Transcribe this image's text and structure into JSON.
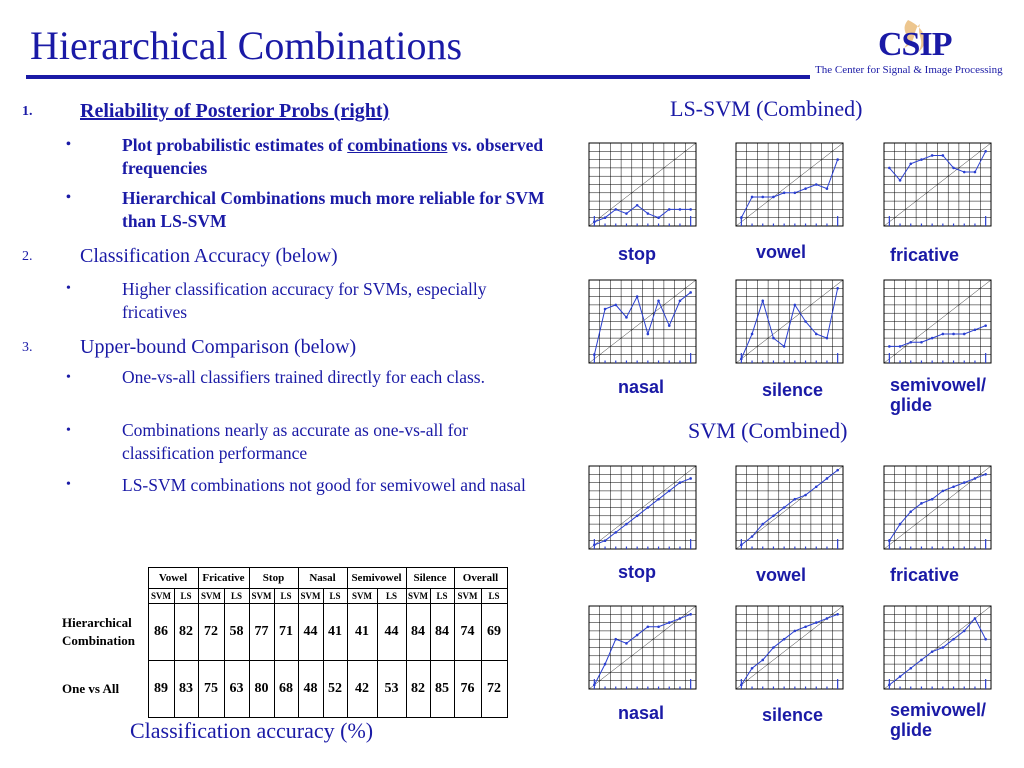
{
  "header": {
    "title": "Hierarchical Combinations",
    "logo_text": "CSIP",
    "tagline": "The Center for Signal & Image Processing"
  },
  "outline": [
    {
      "num": "1.",
      "text": "Reliability of Posterior Probs (right)",
      "bullets": [
        {
          "pre": "Plot probabilistic estimates of ",
          "emph": "combinations",
          "post": " vs. observed frequencies"
        },
        {
          "pre": "Hierarchical Combinations much more reliable for SVM than LS-SVM",
          "emph": "",
          "post": ""
        }
      ]
    },
    {
      "num": "2.",
      "text": "Classification Accuracy (below)",
      "bullets": [
        {
          "pre": "Higher classification accuracy for SVMs, especially fricatives",
          "emph": "",
          "post": ""
        }
      ]
    },
    {
      "num": "3.",
      "text": "Upper-bound Comparison (below)",
      "bullets": [
        {
          "pre": "One-vs-all classifiers trained directly for each class.",
          "emph": "",
          "post": ""
        },
        {
          "pre": "Combinations nearly as accurate as one-vs-all for classification performance",
          "emph": "",
          "post": ""
        },
        {
          "pre": "LS-SVM combinations not good for semivowel and nasal",
          "emph": "",
          "post": ""
        }
      ]
    }
  ],
  "table": {
    "columns": [
      "Vowel",
      "Fricative",
      "Stop",
      "Nasal",
      "Semivowel",
      "Silence",
      "Overall"
    ],
    "subcolumns": [
      "SVM",
      "LS"
    ],
    "rows": [
      {
        "label_line1": "Hierarchical",
        "label_line2": "Combination",
        "values": [
          "86",
          "82",
          "72",
          "58",
          "77",
          "71",
          "44",
          "41",
          "41",
          "44",
          "84",
          "84",
          "74",
          "69"
        ]
      },
      {
        "label_line1": "One vs All",
        "label_line2": "",
        "values": [
          "89",
          "83",
          "75",
          "63",
          "80",
          "68",
          "48",
          "52",
          "42",
          "53",
          "82",
          "85",
          "76",
          "72"
        ]
      }
    ],
    "caption": "Classification accuracy (%)"
  },
  "panels": {
    "lssvm_title": "LS-SVM (Combined)",
    "svm_title": "SVM (Combined)"
  },
  "chart_data": [
    {
      "type": "line",
      "group": "LS-SVM",
      "label": "stop",
      "x": [
        0.05,
        0.15,
        0.25,
        0.35,
        0.45,
        0.55,
        0.65,
        0.75,
        0.85,
        0.95
      ],
      "series": [
        {
          "values": [
            0.05,
            0.1,
            0.2,
            0.15,
            0.25,
            0.15,
            0.1,
            0.2,
            0.2,
            0.2
          ]
        }
      ],
      "ylim": [
        0,
        1
      ]
    },
    {
      "type": "line",
      "group": "LS-SVM",
      "label": "vowel",
      "x": [
        0.05,
        0.15,
        0.25,
        0.35,
        0.45,
        0.55,
        0.65,
        0.75,
        0.85,
        0.95
      ],
      "series": [
        {
          "values": [
            0.1,
            0.35,
            0.35,
            0.35,
            0.4,
            0.4,
            0.45,
            0.5,
            0.45,
            0.8
          ]
        }
      ],
      "ylim": [
        0,
        1
      ]
    },
    {
      "type": "line",
      "group": "LS-SVM",
      "label": "fricative",
      "x": [
        0.05,
        0.15,
        0.25,
        0.35,
        0.45,
        0.55,
        0.65,
        0.75,
        0.85,
        0.95
      ],
      "series": [
        {
          "values": [
            0.7,
            0.55,
            0.75,
            0.8,
            0.85,
            0.85,
            0.7,
            0.65,
            0.65,
            0.9
          ]
        }
      ],
      "ylim": [
        0,
        1
      ]
    },
    {
      "type": "line",
      "group": "LS-SVM",
      "label": "nasal",
      "x": [
        0.05,
        0.15,
        0.25,
        0.35,
        0.45,
        0.55,
        0.65,
        0.75,
        0.85,
        0.95
      ],
      "series": [
        {
          "values": [
            0.1,
            0.65,
            0.7,
            0.55,
            0.8,
            0.35,
            0.75,
            0.45,
            0.75,
            0.85
          ]
        }
      ],
      "ylim": [
        0,
        1
      ]
    },
    {
      "type": "line",
      "group": "LS-SVM",
      "label": "silence",
      "x": [
        0.05,
        0.15,
        0.25,
        0.35,
        0.45,
        0.55,
        0.65,
        0.75,
        0.85,
        0.95
      ],
      "series": [
        {
          "values": [
            0.05,
            0.35,
            0.75,
            0.3,
            0.2,
            0.7,
            0.5,
            0.35,
            0.3,
            0.9
          ]
        }
      ],
      "ylim": [
        0,
        1
      ]
    },
    {
      "type": "line",
      "group": "LS-SVM",
      "label": "semivowel/ glide",
      "x": [
        0.05,
        0.15,
        0.25,
        0.35,
        0.45,
        0.55,
        0.65,
        0.75,
        0.85,
        0.95
      ],
      "series": [
        {
          "values": [
            0.2,
            0.2,
            0.25,
            0.25,
            0.3,
            0.35,
            0.35,
            0.35,
            0.4,
            0.45
          ]
        }
      ],
      "ylim": [
        0,
        1
      ]
    },
    {
      "type": "line",
      "group": "SVM",
      "label": "stop",
      "x": [
        0.05,
        0.15,
        0.25,
        0.35,
        0.45,
        0.55,
        0.65,
        0.75,
        0.85,
        0.95
      ],
      "series": [
        {
          "values": [
            0.05,
            0.1,
            0.2,
            0.3,
            0.4,
            0.5,
            0.6,
            0.7,
            0.8,
            0.85
          ]
        }
      ],
      "ylim": [
        0,
        1
      ]
    },
    {
      "type": "line",
      "group": "SVM",
      "label": "vowel",
      "x": [
        0.05,
        0.15,
        0.25,
        0.35,
        0.45,
        0.55,
        0.65,
        0.75,
        0.85,
        0.95
      ],
      "series": [
        {
          "values": [
            0.05,
            0.15,
            0.3,
            0.4,
            0.5,
            0.6,
            0.65,
            0.75,
            0.85,
            0.95
          ]
        }
      ],
      "ylim": [
        0,
        1
      ]
    },
    {
      "type": "line",
      "group": "SVM",
      "label": "fricative",
      "x": [
        0.05,
        0.15,
        0.25,
        0.35,
        0.45,
        0.55,
        0.65,
        0.75,
        0.85,
        0.95
      ],
      "series": [
        {
          "values": [
            0.1,
            0.3,
            0.45,
            0.55,
            0.6,
            0.7,
            0.75,
            0.8,
            0.85,
            0.9
          ]
        }
      ],
      "ylim": [
        0,
        1
      ]
    },
    {
      "type": "line",
      "group": "SVM",
      "label": "nasal",
      "x": [
        0.05,
        0.15,
        0.25,
        0.35,
        0.45,
        0.55,
        0.65,
        0.75,
        0.85,
        0.95
      ],
      "series": [
        {
          "values": [
            0.05,
            0.3,
            0.6,
            0.55,
            0.65,
            0.75,
            0.75,
            0.8,
            0.85,
            0.9
          ]
        }
      ],
      "ylim": [
        0,
        1
      ]
    },
    {
      "type": "line",
      "group": "SVM",
      "label": "silence",
      "x": [
        0.05,
        0.15,
        0.25,
        0.35,
        0.45,
        0.55,
        0.65,
        0.75,
        0.85,
        0.95
      ],
      "series": [
        {
          "values": [
            0.05,
            0.25,
            0.35,
            0.5,
            0.6,
            0.7,
            0.75,
            0.8,
            0.85,
            0.9
          ]
        }
      ],
      "ylim": [
        0,
        1
      ]
    },
    {
      "type": "line",
      "group": "SVM",
      "label": "semivowel/ glide",
      "x": [
        0.05,
        0.15,
        0.25,
        0.35,
        0.45,
        0.55,
        0.65,
        0.75,
        0.85,
        0.95
      ],
      "series": [
        {
          "values": [
            0.05,
            0.15,
            0.25,
            0.35,
            0.45,
            0.5,
            0.6,
            0.7,
            0.85,
            0.6
          ]
        }
      ],
      "ylim": [
        0,
        1
      ]
    }
  ]
}
